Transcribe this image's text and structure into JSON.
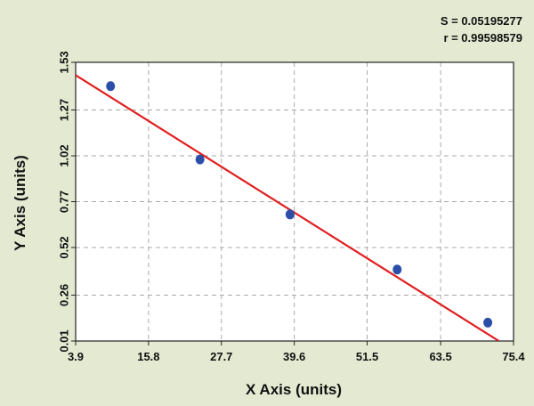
{
  "chart_data": {
    "type": "scatter",
    "title": "",
    "xlabel": "X Axis (units)",
    "ylabel": "Y Axis (units)",
    "xlim": [
      3.9,
      75.4
    ],
    "ylim": [
      0.01,
      1.53
    ],
    "x_ticks": [
      "3.9",
      "15.8",
      "27.7",
      "39.6",
      "51.5",
      "63.5",
      "75.4"
    ],
    "y_ticks": [
      "0.01",
      "0.26",
      "0.52",
      "0.77",
      "1.02",
      "1.27",
      "1.53"
    ],
    "grid": true,
    "series": [
      {
        "type": "scatter",
        "color": "#2b4fa8",
        "x": [
          9.6,
          24.2,
          38.9,
          56.4,
          71.2
        ],
        "y": [
          1.4,
          1.0,
          0.7,
          0.4,
          0.11
        ]
      },
      {
        "type": "line",
        "color": "#e02020",
        "x": [
          3.9,
          73.0
        ],
        "y": [
          1.46,
          0.01
        ]
      }
    ],
    "annotations": {
      "s_text": "S = 0.05195277",
      "r_text": "r = 0.99598579"
    }
  }
}
